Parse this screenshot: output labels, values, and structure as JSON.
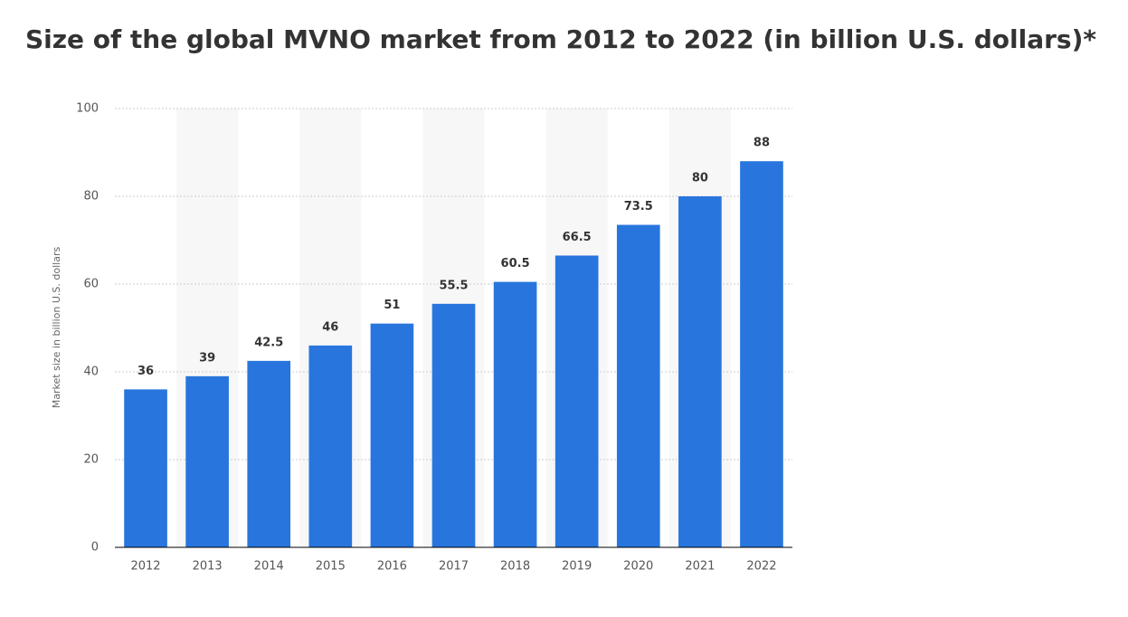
{
  "chart_data": {
    "type": "bar",
    "title": "Size of the global MVNO market from 2012 to 2022 (in billion U.S. dollars)*",
    "y_label": "Market size in billion U.S. dollars",
    "categories": [
      "2012",
      "2013",
      "2014",
      "2015",
      "2016",
      "2017",
      "2018",
      "2019",
      "2020",
      "2021",
      "2022"
    ],
    "values": [
      36,
      39,
      42.5,
      46,
      51,
      55.5,
      60.5,
      66.5,
      73.5,
      80,
      88
    ],
    "color": "#2876dd",
    "ylim": [
      0,
      100
    ],
    "yticks": [
      0,
      20,
      40,
      60,
      80,
      100
    ],
    "grid": true
  }
}
